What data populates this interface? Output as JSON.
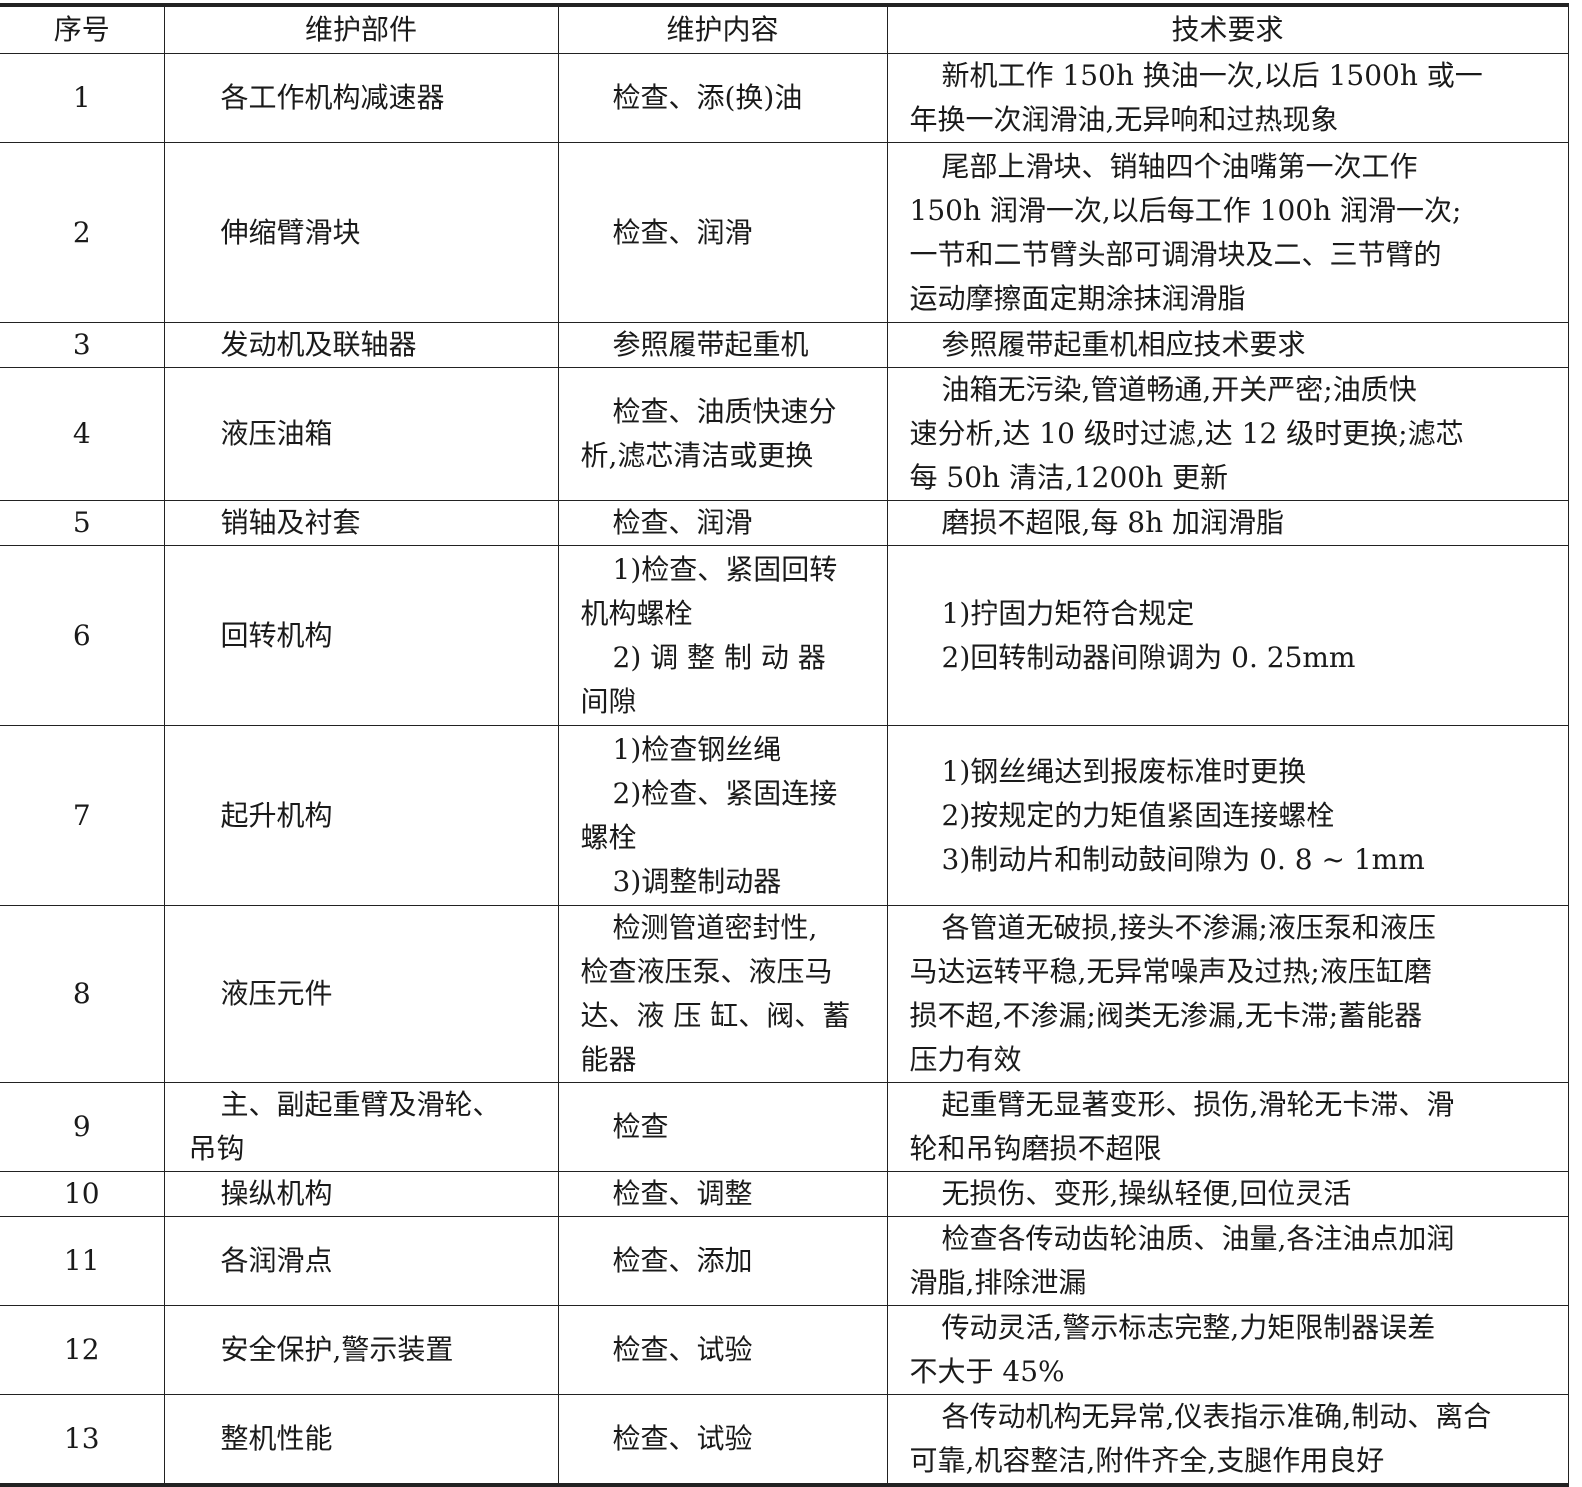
{
  "headers": [
    "序号",
    "维护部件",
    "维护内容",
    "技术要求"
  ],
  "rows": [
    {
      "no": "1",
      "part": [
        "各工作机构减速器"
      ],
      "content": [
        "检查、添(换)油"
      ],
      "req": [
        "新机工作 150h 换油一次,以后 1500h 或一",
        "年换一次润滑油,无异响和过热现象"
      ]
    },
    {
      "no": "2",
      "part": [
        "伸缩臂滑块"
      ],
      "content": [
        "检查、润滑"
      ],
      "req": [
        "尾部上滑块、销轴四个油嘴第一次工作",
        "150h 润滑一次,以后每工作 100h 润滑一次;",
        "一节和二节臂头部可调滑块及二、三节臂的",
        "运动摩擦面定期涂抹润滑脂"
      ]
    },
    {
      "no": "3",
      "part": [
        "发动机及联轴器"
      ],
      "content": [
        "参照履带起重机"
      ],
      "req": [
        "参照履带起重机相应技术要求"
      ]
    },
    {
      "no": "4",
      "part": [
        "液压油箱"
      ],
      "content": [
        "检查、油质快速分",
        "析,滤芯清洁或更换"
      ],
      "req": [
        "油箱无污染,管道畅通,开关严密;油质快",
        "速分析,达 10 级时过滤,达 12 级时更换;滤芯",
        "每 50h 清洁,1200h 更新"
      ]
    },
    {
      "no": "5",
      "part": [
        "销轴及衬套"
      ],
      "content": [
        "检查、润滑"
      ],
      "req": [
        "磨损不超限,每 8h 加润滑脂"
      ]
    },
    {
      "no": "6",
      "part": [
        "回转机构"
      ],
      "content": [
        "1)检查、紧固回转",
        "机构螺栓",
        "2) 调 整 制 动 器",
        "间隙"
      ],
      "content_first": [
        true,
        false,
        true,
        false
      ],
      "req": [
        "1)拧固力矩符合规定",
        "2)回转制动器间隙调为 0. 25mm"
      ],
      "req_first": [
        true,
        true
      ]
    },
    {
      "no": "7",
      "part": [
        "起升机构"
      ],
      "content": [
        "1)检查钢丝绳",
        "2)检查、紧固连接",
        "螺栓",
        "3)调整制动器"
      ],
      "content_first": [
        true,
        true,
        false,
        true
      ],
      "req": [
        "1)钢丝绳达到报废标准时更换",
        "2)按规定的力矩值紧固连接螺栓",
        "3)制动片和制动鼓间隙为 0. 8 ~ 1mm"
      ],
      "req_first": [
        true,
        true,
        true
      ]
    },
    {
      "no": "8",
      "part": [
        "液压元件"
      ],
      "content": [
        "检测管道密封性,",
        "检查液压泵、液压马",
        "达、液 压 缸、阀、蓄",
        "能器"
      ],
      "req": [
        "各管道无破损,接头不渗漏;液压泵和液压",
        "马达运转平稳,无异常噪声及过热;液压缸磨",
        "损不超,不渗漏;阀类无渗漏,无卡滞;蓄能器",
        "压力有效"
      ]
    },
    {
      "no": "9",
      "part": [
        "主、副起重臂及滑轮、",
        "吊钩"
      ],
      "content": [
        "检查"
      ],
      "req": [
        "起重臂无显著变形、损伤,滑轮无卡滞、滑",
        "轮和吊钩磨损不超限"
      ]
    },
    {
      "no": "10",
      "part": [
        "操纵机构"
      ],
      "content": [
        "检查、调整"
      ],
      "req": [
        "无损伤、变形,操纵轻便,回位灵活"
      ]
    },
    {
      "no": "11",
      "part": [
        "各润滑点"
      ],
      "content": [
        "检查、添加"
      ],
      "req": [
        "检查各传动齿轮油质、油量,各注油点加润",
        "滑脂,排除泄漏"
      ]
    },
    {
      "no": "12",
      "part": [
        "安全保护,警示装置"
      ],
      "content": [
        "检查、试验"
      ],
      "req": [
        "传动灵活,警示标志完整,力矩限制器误差",
        "不大于 45%"
      ]
    },
    {
      "no": "13",
      "part": [
        "整机性能"
      ],
      "content": [
        "检查、试验"
      ],
      "req": [
        "各传动机构无异常,仪表指示准确,制动、离合",
        "可靠,机容整洁,附件齐全,支腿作用良好"
      ]
    }
  ]
}
